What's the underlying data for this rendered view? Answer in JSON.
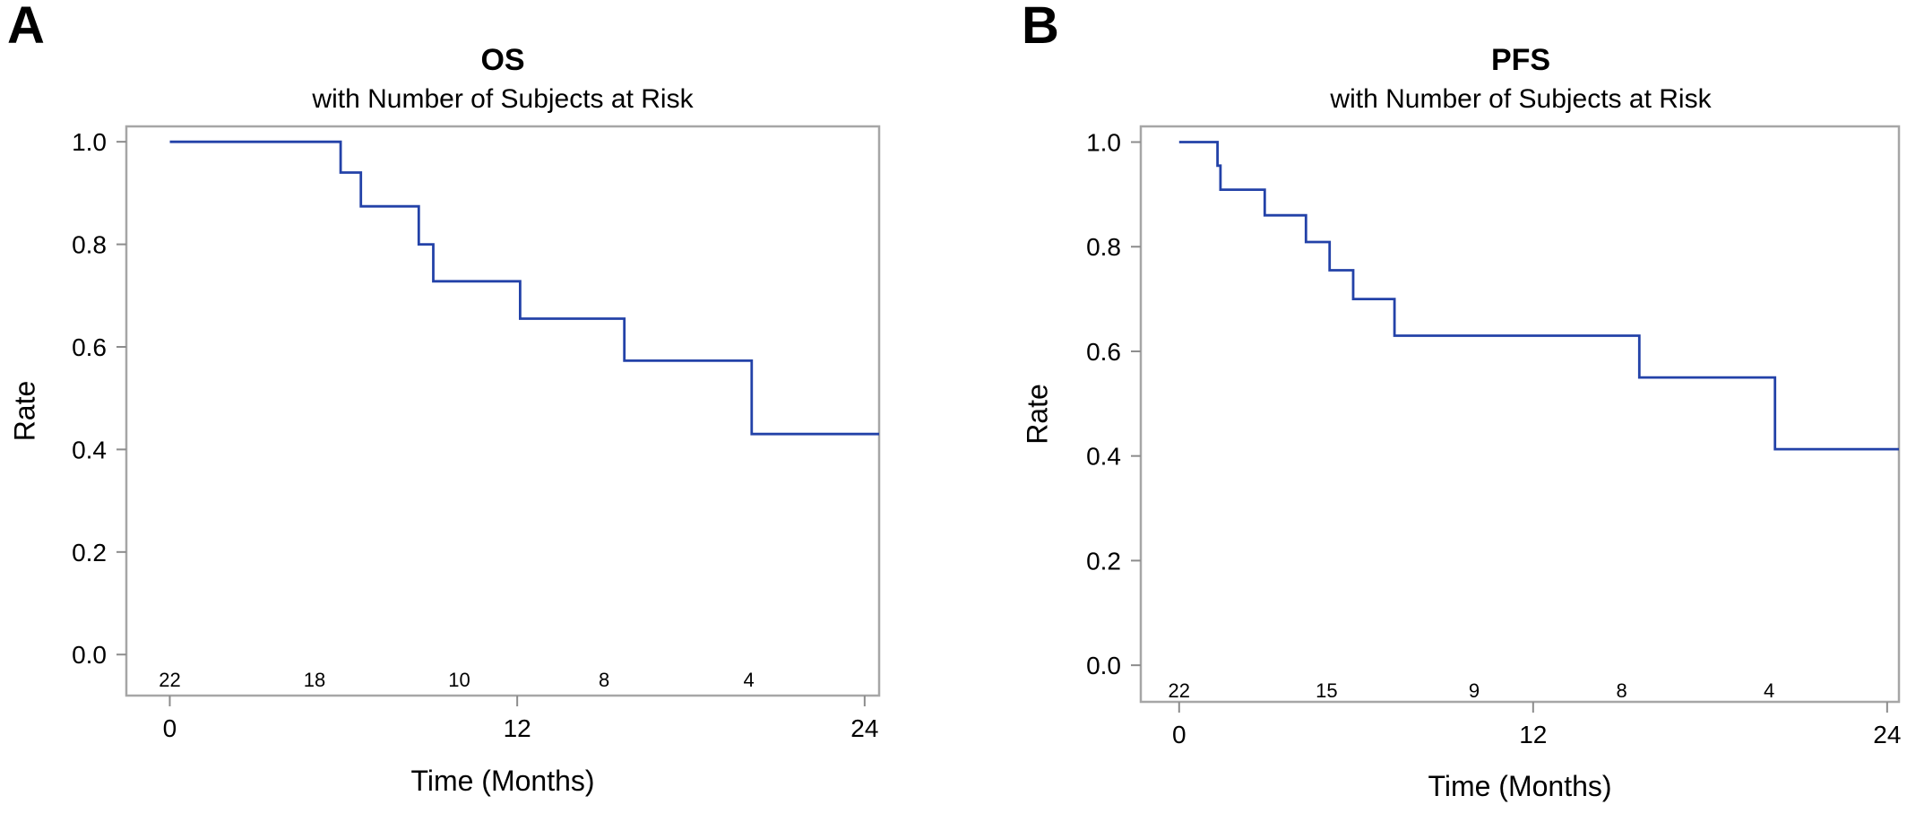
{
  "line_color": "#2342a8",
  "chart_data": [
    {
      "panel_label": "A",
      "type": "line",
      "step": true,
      "title": "OS",
      "subtitle": "with Number of Subjects at Risk",
      "xlabel": "Time (Months)",
      "ylabel": "Rate",
      "xlim": [
        -1.5,
        24.5
      ],
      "ylim": [
        -0.08,
        1.03
      ],
      "xticks": [
        0,
        12,
        24
      ],
      "yticks": [
        0.0,
        0.2,
        0.4,
        0.6,
        0.8,
        1.0
      ],
      "series": [
        {
          "x": [
            0,
            5.9,
            6.6,
            8.6,
            9.1,
            12.1,
            15.7,
            20.1,
            24.5
          ],
          "y": [
            1.0,
            0.94,
            0.874,
            0.8,
            0.728,
            0.655,
            0.573,
            0.43,
            0.43
          ]
        }
      ],
      "at_risk": {
        "x": [
          0,
          5,
          10,
          15,
          20
        ],
        "counts": [
          "22",
          "18",
          "10",
          "8",
          "4"
        ]
      }
    },
    {
      "panel_label": "B",
      "type": "line",
      "step": true,
      "title": "PFS",
      "subtitle": "with Number of Subjects at Risk",
      "xlabel": "Time (Months)",
      "ylabel": "Rate",
      "xlim": [
        -1.3,
        24.4
      ],
      "ylim": [
        -0.07,
        1.03
      ],
      "xticks": [
        0,
        12,
        24
      ],
      "yticks": [
        0.0,
        0.2,
        0.4,
        0.6,
        0.8,
        1.0
      ],
      "series": [
        {
          "x": [
            0,
            1.3,
            1.4,
            2.9,
            4.3,
            5.1,
            5.9,
            7.3,
            15.6,
            20.2,
            24.4
          ],
          "y": [
            1.0,
            0.955,
            0.909,
            0.86,
            0.809,
            0.755,
            0.7,
            0.63,
            0.55,
            0.413,
            0.413
          ]
        }
      ],
      "at_risk": {
        "x": [
          0,
          5,
          10,
          15,
          20
        ],
        "counts": [
          "22",
          "15",
          "9",
          "8",
          "4"
        ]
      }
    }
  ]
}
